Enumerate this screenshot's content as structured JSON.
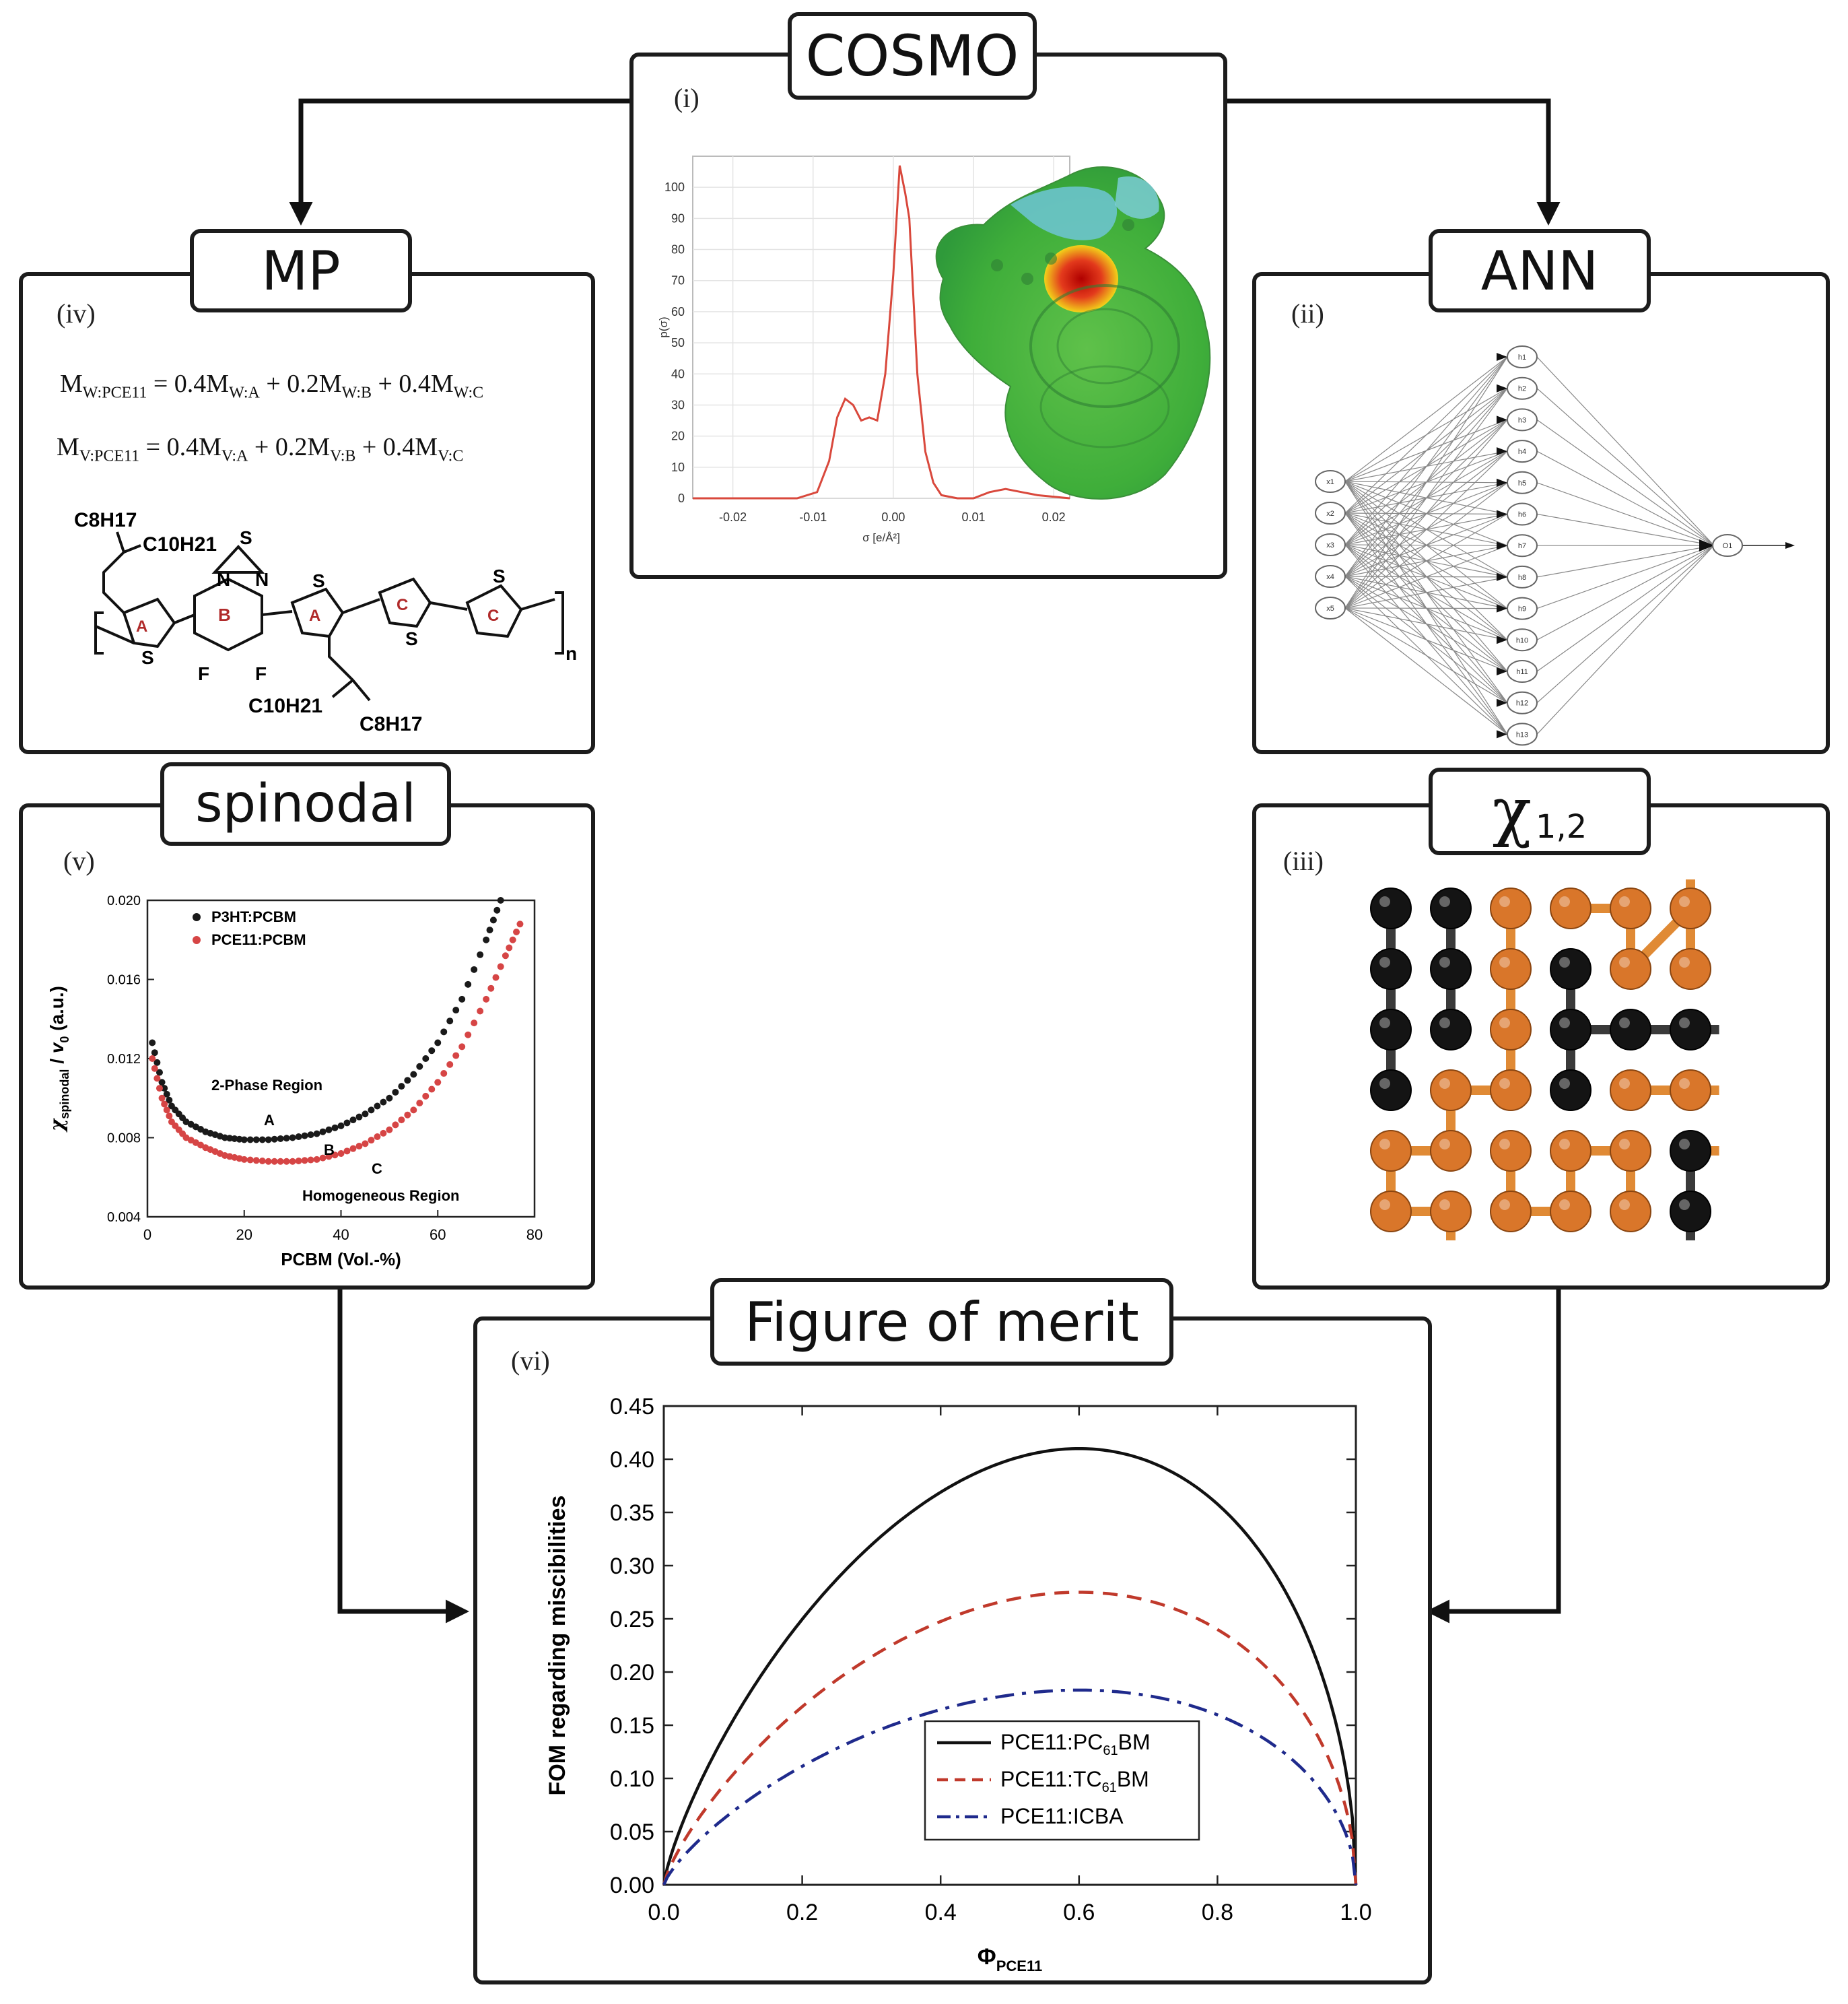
{
  "nodes": {
    "cosmo": {
      "title": "COSMO",
      "tag": "(i)"
    },
    "ann": {
      "title": "ANN",
      "tag": "(ii)"
    },
    "chi": {
      "title": "χ",
      "sub": "1,2",
      "tag": "(iii)"
    },
    "mp": {
      "title": "MP",
      "tag": "(iv)"
    },
    "spinodal": {
      "title": "spinodal",
      "tag": "(v)"
    },
    "fom": {
      "title": "Figure of merit",
      "tag": "(vi)"
    }
  },
  "mp_panel": {
    "eq1": {
      "lhs": "M",
      "lhs_sub": "W:PCE11",
      "rhs": "= 0.4M",
      "s1": "W:A",
      "p2": " + 0.2M",
      "s2": "W:B",
      "p3": " + 0.4M",
      "s3": "W:C"
    },
    "eq2": {
      "lhs": "M",
      "lhs_sub": "V:PCE11",
      "rhs": "= 0.4M",
      "s1": "V:A",
      "p2": " + 0.2M",
      "s2": "V:B",
      "p3": " + 0.4M",
      "s3": "V:C"
    },
    "molecule": {
      "c8h17_top": "C8H17",
      "c10h21_top": "C10H21",
      "c10h21_bot": "C10H21",
      "c8h17_bot": "C8H17",
      "ring_labels": [
        "A",
        "B",
        "A",
        "C",
        "C"
      ],
      "atoms": [
        "S",
        "N",
        "N",
        "S",
        "S",
        "S",
        "S",
        "F",
        "F"
      ],
      "n": "n"
    }
  },
  "cosmo_chart": {
    "type": "line",
    "xlabel": "σ [e/Å²]",
    "ylabel": "p(σ)",
    "xticks": [
      "-0.02",
      "-0.01",
      "0.00",
      "0.01",
      "0.02"
    ],
    "yticks": [
      "0",
      "10",
      "20",
      "30",
      "40",
      "50",
      "60",
      "70",
      "80",
      "90",
      "100"
    ],
    "x": [
      -0.025,
      -0.012,
      -0.0095,
      -0.008,
      -0.007,
      -0.006,
      -0.005,
      -0.004,
      -0.003,
      -0.002,
      -0.001,
      0.0,
      0.0008,
      0.0015,
      0.002,
      0.003,
      0.004,
      0.005,
      0.006,
      0.008,
      0.01,
      0.012,
      0.014,
      0.016,
      0.018,
      0.022
    ],
    "y": [
      0,
      0,
      2,
      12,
      26,
      32,
      30,
      25,
      26,
      25,
      40,
      72,
      107,
      98,
      90,
      40,
      15,
      5,
      1,
      0,
      0,
      2,
      3,
      2,
      1,
      0
    ],
    "xlim": [
      -0.025,
      0.022
    ],
    "ylim": [
      0,
      110
    ]
  },
  "ann_diagram": {
    "input_nodes": [
      "x1",
      "x2",
      "x3",
      "x4",
      "x5"
    ],
    "hidden_nodes": [
      "h1",
      "h2",
      "h3",
      "h4",
      "h5",
      "h6",
      "h7",
      "h8",
      "h9",
      "h10",
      "h11",
      "h12",
      "h13"
    ],
    "output_nodes": [
      "O1"
    ]
  },
  "spinodal_chart": {
    "type": "scatter",
    "title": "",
    "xlabel": "PCBM (Vol.-%)",
    "ylabel": "χspinodal / v0 (a.u.)",
    "ylabel_main": "χ",
    "ylabel_sub": "spinodal",
    "ylabel_div": " / ",
    "ylabel_v": "v",
    "ylabel_v_sub": "0",
    "ylabel_unit": " (a.u.)",
    "xlim": [
      0,
      80
    ],
    "ylim": [
      0.004,
      0.02
    ],
    "xticks": [
      "0",
      "20",
      "40",
      "60",
      "80"
    ],
    "yticks": [
      "0.004",
      "0.008",
      "0.012",
      "0.016",
      "0.020"
    ],
    "annotations": [
      "2-Phase Region",
      "Homogeneous Region",
      "A",
      "B",
      "C"
    ],
    "series": [
      {
        "name": "P3HT:PCBM",
        "color": "#1a1a1a",
        "x": [
          1,
          3,
          5,
          8,
          12,
          16,
          20,
          25,
          30,
          35,
          40,
          45,
          50,
          55,
          60,
          65,
          70,
          73
        ],
        "y": [
          0.0128,
          0.0108,
          0.0096,
          0.0088,
          0.0083,
          0.008,
          0.0079,
          0.0079,
          0.008,
          0.0082,
          0.0086,
          0.0092,
          0.01,
          0.0112,
          0.0128,
          0.015,
          0.018,
          0.02
        ]
      },
      {
        "name": "PCE11:PCBM",
        "color": "#d64545",
        "x": [
          1,
          3,
          5,
          8,
          12,
          16,
          20,
          25,
          30,
          35,
          40,
          45,
          50,
          55,
          60,
          65,
          70,
          74,
          77
        ],
        "y": [
          0.012,
          0.01,
          0.0088,
          0.008,
          0.0075,
          0.0071,
          0.0069,
          0.0068,
          0.0068,
          0.0069,
          0.0072,
          0.0077,
          0.0084,
          0.0094,
          0.0108,
          0.0126,
          0.015,
          0.0172,
          0.0188
        ]
      }
    ]
  },
  "fom_chart": {
    "type": "line",
    "xlabel": "Φ",
    "xlabel_sub": "PCE11",
    "ylabel": "FOM regarding miscibilities",
    "xlim": [
      0,
      1
    ],
    "ylim": [
      0,
      0.45
    ],
    "xticks": [
      "0.0",
      "0.2",
      "0.4",
      "0.6",
      "0.8",
      "1.0"
    ],
    "yticks": [
      "0.00",
      "0.05",
      "0.10",
      "0.15",
      "0.20",
      "0.25",
      "0.30",
      "0.35",
      "0.40",
      "0.45"
    ],
    "series": [
      {
        "name": "PCE11:PC61BM",
        "label_a": "PCE11:PC",
        "label_sub": "61",
        "label_b": "BM",
        "color": "#111111",
        "dash": "",
        "peak": 0.41
      },
      {
        "name": "PCE11:TC61BM",
        "label_a": "PCE11:TC",
        "label_sub": "61",
        "label_b": "BM",
        "color": "#c0392b",
        "dash": "22,14",
        "peak": 0.275
      },
      {
        "name": "PCE11:ICBA",
        "label_a": "PCE11:ICBA",
        "label_sub": "",
        "label_b": "",
        "color": "#1f2a8c",
        "dash": "28,12,6,12",
        "peak": 0.183
      }
    ]
  }
}
